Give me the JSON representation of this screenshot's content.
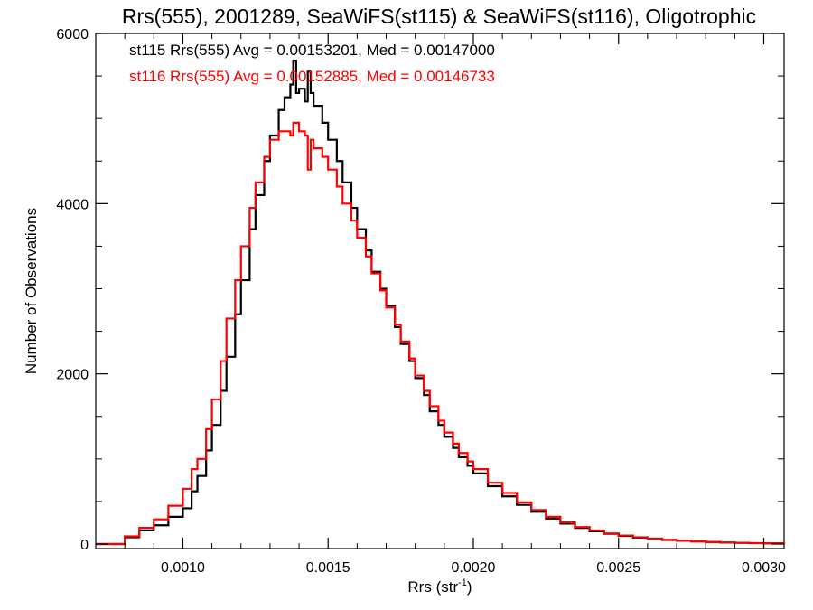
{
  "chart_data": {
    "type": "histogram",
    "title": "Rrs(555), 2001289, SeaWiFS(st115) & SeaWiFS(st116), Oligotrophic",
    "xlabel": "Rrs (str",
    "xlabel_sup": "-1",
    "xlabel_close": ")",
    "ylabel": "Number of Observations",
    "xlim": [
      0.0007,
      0.00307
    ],
    "ylim": [
      0,
      6000
    ],
    "x_ticks": [
      0.001,
      0.0015,
      0.002,
      0.0025,
      0.003
    ],
    "x_tick_labels": [
      "0.0010",
      "0.0015",
      "0.0020",
      "0.0025",
      "0.0030"
    ],
    "y_ticks": [
      0,
      2000,
      4000,
      6000
    ],
    "y_tick_labels": [
      "0",
      "2000",
      "4000",
      "6000"
    ],
    "grid": false,
    "legend_position": "top-left",
    "series": [
      {
        "label": "st115 Rrs(555) Avg = 0.00153201, Med = 0.00147000",
        "color": "#000000",
        "points": [
          [
            0.0007,
            0
          ],
          [
            0.00075,
            0
          ],
          [
            0.00078,
            0
          ],
          [
            0.0008,
            80
          ],
          [
            0.00085,
            160
          ],
          [
            0.0009,
            220
          ],
          [
            0.00095,
            320
          ],
          [
            0.001,
            420
          ],
          [
            0.00103,
            620
          ],
          [
            0.00105,
            800
          ],
          [
            0.00108,
            1100
          ],
          [
            0.0011,
            1400
          ],
          [
            0.00113,
            1800
          ],
          [
            0.00115,
            2200
          ],
          [
            0.00118,
            2700
          ],
          [
            0.0012,
            3100
          ],
          [
            0.00123,
            3700
          ],
          [
            0.00125,
            4100
          ],
          [
            0.00128,
            4500
          ],
          [
            0.0013,
            4800
          ],
          [
            0.00133,
            5100
          ],
          [
            0.00135,
            5250
          ],
          [
            0.00137,
            5400
          ],
          [
            0.00138,
            5680
          ],
          [
            0.00139,
            5300
          ],
          [
            0.0014,
            5350
          ],
          [
            0.00142,
            5200
          ],
          [
            0.00143,
            5550
          ],
          [
            0.00144,
            5300
          ],
          [
            0.00145,
            5150
          ],
          [
            0.00148,
            4950
          ],
          [
            0.0015,
            4750
          ],
          [
            0.00153,
            4500
          ],
          [
            0.00155,
            4250
          ],
          [
            0.00158,
            3950
          ],
          [
            0.0016,
            3700
          ],
          [
            0.00163,
            3450
          ],
          [
            0.00165,
            3200
          ],
          [
            0.00168,
            3000
          ],
          [
            0.0017,
            2800
          ],
          [
            0.00173,
            2550
          ],
          [
            0.00175,
            2350
          ],
          [
            0.00178,
            2150
          ],
          [
            0.0018,
            1950
          ],
          [
            0.00183,
            1750
          ],
          [
            0.00185,
            1560
          ],
          [
            0.00188,
            1400
          ],
          [
            0.0019,
            1260
          ],
          [
            0.00193,
            1130
          ],
          [
            0.00195,
            1020
          ],
          [
            0.00198,
            920
          ],
          [
            0.002,
            830
          ],
          [
            0.00205,
            680
          ],
          [
            0.0021,
            560
          ],
          [
            0.00215,
            460
          ],
          [
            0.0022,
            380
          ],
          [
            0.00225,
            300
          ],
          [
            0.0023,
            240
          ],
          [
            0.00235,
            190
          ],
          [
            0.0024,
            150
          ],
          [
            0.00245,
            120
          ],
          [
            0.0025,
            95
          ],
          [
            0.00255,
            75
          ],
          [
            0.0026,
            60
          ],
          [
            0.00265,
            48
          ],
          [
            0.0027,
            38
          ],
          [
            0.00275,
            30
          ],
          [
            0.0028,
            24
          ],
          [
            0.00285,
            18
          ],
          [
            0.0029,
            14
          ],
          [
            0.00295,
            10
          ],
          [
            0.003,
            8
          ],
          [
            0.00307,
            5
          ]
        ]
      },
      {
        "label": "st116 Rrs(555) Avg = 0.00152885, Med = 0.00146733",
        "color": "#ff0000",
        "points": [
          [
            0.0007,
            0
          ],
          [
            0.00075,
            0
          ],
          [
            0.00078,
            0
          ],
          [
            0.0008,
            90
          ],
          [
            0.00085,
            190
          ],
          [
            0.0009,
            290
          ],
          [
            0.00095,
            450
          ],
          [
            0.001,
            650
          ],
          [
            0.00103,
            880
          ],
          [
            0.00105,
            1000
          ],
          [
            0.00108,
            1350
          ],
          [
            0.0011,
            1700
          ],
          [
            0.00113,
            2150
          ],
          [
            0.00115,
            2650
          ],
          [
            0.00118,
            3100
          ],
          [
            0.0012,
            3500
          ],
          [
            0.00123,
            3950
          ],
          [
            0.00125,
            4250
          ],
          [
            0.00128,
            4550
          ],
          [
            0.0013,
            4750
          ],
          [
            0.00133,
            4850
          ],
          [
            0.00135,
            4850
          ],
          [
            0.00137,
            4800
          ],
          [
            0.00138,
            4950
          ],
          [
            0.0014,
            4850
          ],
          [
            0.00142,
            4800
          ],
          [
            0.00143,
            4400
          ],
          [
            0.00144,
            4750
          ],
          [
            0.00145,
            4650
          ],
          [
            0.00148,
            4550
          ],
          [
            0.0015,
            4400
          ],
          [
            0.00153,
            4200
          ],
          [
            0.00155,
            4000
          ],
          [
            0.00158,
            3800
          ],
          [
            0.0016,
            3600
          ],
          [
            0.00163,
            3380
          ],
          [
            0.00165,
            3180
          ],
          [
            0.00168,
            2980
          ],
          [
            0.0017,
            2780
          ],
          [
            0.00173,
            2580
          ],
          [
            0.00175,
            2380
          ],
          [
            0.00178,
            2180
          ],
          [
            0.0018,
            1980
          ],
          [
            0.00183,
            1800
          ],
          [
            0.00185,
            1620
          ],
          [
            0.00188,
            1450
          ],
          [
            0.0019,
            1310
          ],
          [
            0.00193,
            1180
          ],
          [
            0.00195,
            1070
          ],
          [
            0.00198,
            970
          ],
          [
            0.002,
            880
          ],
          [
            0.00205,
            720
          ],
          [
            0.0021,
            600
          ],
          [
            0.00215,
            490
          ],
          [
            0.0022,
            400
          ],
          [
            0.00225,
            320
          ],
          [
            0.0023,
            255
          ],
          [
            0.00235,
            200
          ],
          [
            0.0024,
            160
          ],
          [
            0.00245,
            125
          ],
          [
            0.0025,
            100
          ],
          [
            0.00255,
            80
          ],
          [
            0.0026,
            64
          ],
          [
            0.00265,
            50
          ],
          [
            0.0027,
            40
          ],
          [
            0.00275,
            32
          ],
          [
            0.0028,
            25
          ],
          [
            0.00285,
            19
          ],
          [
            0.0029,
            15
          ],
          [
            0.00295,
            11
          ],
          [
            0.003,
            9
          ],
          [
            0.00307,
            6
          ]
        ]
      }
    ]
  }
}
